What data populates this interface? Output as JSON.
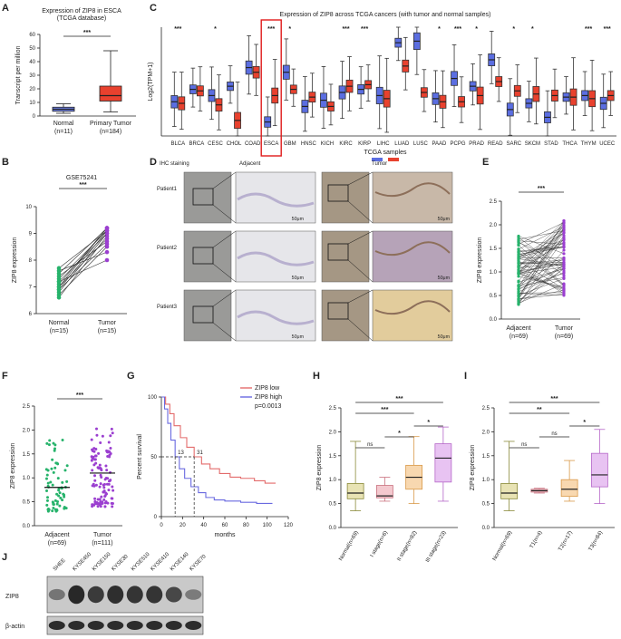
{
  "panels": {
    "A": {
      "label": "A",
      "title": [
        "Expression of ZIP8 in ESCA",
        "(TCGA database)"
      ]
    },
    "B": {
      "label": "B"
    },
    "C": {
      "label": "C"
    },
    "D": {
      "label": "D",
      "col_headers": [
        "IHC staining",
        "Adjacent",
        "Tumor"
      ],
      "row_labels": [
        "Patient1",
        "Patient2",
        "Patient3"
      ],
      "scale_bar": "50μm"
    },
    "E": {
      "label": "E"
    },
    "F": {
      "label": "F"
    },
    "G": {
      "label": "G"
    },
    "H": {
      "label": "H"
    },
    "I": {
      "label": "I"
    },
    "J": {
      "label": "J",
      "cell_lines": [
        "SHEE",
        "KYSE450",
        "KYSE150",
        "KYSE30",
        "KYSE510",
        "KYSE410",
        "KYSE140",
        "KYSE70"
      ],
      "rows": [
        "ZIP8",
        "β-actin"
      ],
      "zip8_intensity": [
        0.3,
        0.9,
        0.75,
        0.85,
        0.8,
        0.8,
        0.65,
        0.25
      ]
    },
    "colors": {
      "normal": "#5b6ee1",
      "tumor": "#e8412e",
      "adjacent_dot": "#26b36b",
      "tumor_dot": "#9b3fd0",
      "km_low": "#e36b6b",
      "km_high": "#6a6ae0"
    }
  },
  "chart_data": [
    {
      "id": "A",
      "type": "box",
      "title": "Expression of ZIP8 in ESCA (TCGA database)",
      "ylabel": "Transcript per million",
      "ylim": [
        0,
        60
      ],
      "yticks": [
        0,
        10,
        20,
        30,
        40,
        50,
        60
      ],
      "categories": [
        "Normal",
        "Primary Tumor"
      ],
      "ns": [
        "(n=11)",
        "(n=184)"
      ],
      "boxes": [
        {
          "min": 2,
          "q1": 3.5,
          "median": 5,
          "q3": 6.5,
          "max": 9
        },
        {
          "min": 3,
          "q1": 11,
          "median": 15,
          "q3": 22,
          "max": 48
        }
      ],
      "significance": "***"
    },
    {
      "id": "B",
      "type": "paired",
      "title": "GSE75241",
      "ylabel": "ZIP8 expression",
      "ylim": [
        6,
        10
      ],
      "yticks": [
        6,
        7,
        8,
        9,
        10
      ],
      "categories": [
        "Normal",
        "Tumor"
      ],
      "ns": [
        "(n=15)",
        "(n=15)"
      ],
      "pairs": [
        [
          6.6,
          8.9
        ],
        [
          6.8,
          9.0
        ],
        [
          6.9,
          9.1
        ],
        [
          7.0,
          8.8
        ],
        [
          7.1,
          9.2
        ],
        [
          7.2,
          9.0
        ],
        [
          7.3,
          9.1
        ],
        [
          7.4,
          8.7
        ],
        [
          7.5,
          9.2
        ],
        [
          7.6,
          8.3
        ],
        [
          6.7,
          8.5
        ],
        [
          7.0,
          9.2
        ],
        [
          7.2,
          8.0
        ],
        [
          7.7,
          9.1
        ],
        [
          6.9,
          8.6
        ]
      ],
      "significance": "***"
    },
    {
      "id": "C",
      "type": "box",
      "title": "Expression of ZIP8 across TCGA cancers (with tumor and normal samples)",
      "xlabel": "TCGA samples",
      "ylabel": "Log2(TPM+1)",
      "categories": [
        "BLCA",
        "BRCA",
        "CESC",
        "CHOL",
        "COAD",
        "ESCA",
        "GBM",
        "HNSC",
        "KICH",
        "KIRC",
        "KIRP",
        "LIHC",
        "LUAD",
        "LUSC",
        "PAAD",
        "PCPG",
        "PRAD",
        "READ",
        "SARC",
        "SKCM",
        "STAD",
        "THCA",
        "THYM",
        "UCEC"
      ],
      "significance": [
        "***",
        "",
        "*",
        "",
        "",
        "***",
        "*",
        "",
        "",
        "***",
        "***",
        "",
        "",
        "",
        "*",
        "***",
        "*",
        "",
        "*",
        "*",
        "",
        "",
        "***",
        "***"
      ],
      "series": [
        {
          "name": "Normal",
          "medians": [
            2.2,
            3.0,
            2.6,
            3.2,
            4.4,
            0.9,
            4.1,
            1.9,
            2.3,
            2.8,
            3.0,
            2.6,
            6.0,
            6.1,
            2.4,
            3.7,
            3.2,
            4.9,
            1.7,
            2.1,
            1.2,
            2.5,
            2.6,
            2.1
          ]
        },
        {
          "name": "Tumor",
          "medians": [
            2.1,
            2.9,
            2.0,
            1.0,
            4.1,
            2.6,
            3.0,
            2.5,
            1.9,
            3.2,
            3.3,
            2.4,
            4.5,
            2.8,
            2.2,
            2.2,
            2.6,
            3.5,
            2.9,
            2.7,
            2.6,
            2.5,
            2.4,
            2.6
          ]
        }
      ],
      "highlight": "ESCA"
    },
    {
      "id": "E",
      "type": "paired",
      "ylabel": "ZIP8 expression",
      "ylim": [
        0,
        2.5
      ],
      "yticks": [
        0.0,
        0.5,
        1.0,
        1.5,
        2.0,
        2.5
      ],
      "categories": [
        "Adjacent",
        "Tumor"
      ],
      "ns": [
        "(n=69)",
        "(n=69)"
      ],
      "significance": "***",
      "adjacent_range": [
        0.3,
        1.8
      ],
      "tumor_range": [
        0.5,
        2.1
      ]
    },
    {
      "id": "F",
      "type": "scatter",
      "ylabel": "ZIP8 expression",
      "ylim": [
        0,
        2.5
      ],
      "yticks": [
        0.0,
        0.5,
        1.0,
        1.5,
        2.0,
        2.5
      ],
      "categories": [
        "Adjacent",
        "Tumor"
      ],
      "ns": [
        "(n=69)",
        "(n=111)"
      ],
      "significance": "***",
      "adjacent": {
        "mean": 0.8,
        "n": 69,
        "range": [
          0.3,
          1.8
        ]
      },
      "tumor": {
        "mean": 1.1,
        "n": 111,
        "range": [
          0.4,
          2.1
        ]
      }
    },
    {
      "id": "G",
      "type": "line",
      "xlabel": "months",
      "ylabel": "Percent survival",
      "xlim": [
        0,
        120
      ],
      "xticks": [
        0,
        20,
        40,
        60,
        80,
        100,
        120
      ],
      "ylim": [
        0,
        100
      ],
      "yticks": [
        0,
        50,
        100
      ],
      "legend": [
        "ZIP8 low",
        "ZIP8 high"
      ],
      "pvalue": "p=0.0013",
      "median_labels": [
        "13",
        "31"
      ],
      "medians": [
        13,
        31
      ],
      "series": [
        {
          "name": "ZIP8 low",
          "points": [
            [
              0,
              100
            ],
            [
              4,
              94
            ],
            [
              8,
              86
            ],
            [
              12,
              76
            ],
            [
              18,
              66
            ],
            [
              24,
              58
            ],
            [
              31,
              50
            ],
            [
              38,
              44
            ],
            [
              46,
              40
            ],
            [
              55,
              36
            ],
            [
              65,
              33
            ],
            [
              75,
              32
            ],
            [
              88,
              30
            ],
            [
              98,
              28
            ],
            [
              108,
              28
            ]
          ]
        },
        {
          "name": "ZIP8 high",
          "points": [
            [
              0,
              100
            ],
            [
              3,
              90
            ],
            [
              6,
              78
            ],
            [
              9,
              64
            ],
            [
              13,
              50
            ],
            [
              17,
              40
            ],
            [
              22,
              32
            ],
            [
              28,
              25
            ],
            [
              35,
              20
            ],
            [
              42,
              16
            ],
            [
              50,
              14
            ],
            [
              60,
              13
            ],
            [
              75,
              12
            ],
            [
              90,
              11
            ],
            [
              105,
              11
            ]
          ]
        }
      ]
    },
    {
      "id": "H",
      "type": "box",
      "ylabel": "ZIP8 expression",
      "ylim": [
        0,
        2.5
      ],
      "yticks": [
        0.0,
        0.5,
        1.0,
        1.5,
        2.0,
        2.5
      ],
      "categories": [
        "Normal(n=69)",
        "I stage(n=6)",
        "II stage(n=82)",
        "III stage(n=23)"
      ],
      "boxes": [
        {
          "min": 0.35,
          "q1": 0.6,
          "median": 0.72,
          "q3": 0.92,
          "max": 1.8
        },
        {
          "min": 0.55,
          "q1": 0.62,
          "median": 0.66,
          "q3": 0.88,
          "max": 1.05
        },
        {
          "min": 0.5,
          "q1": 0.8,
          "median": 1.05,
          "q3": 1.3,
          "max": 1.9
        },
        {
          "min": 0.55,
          "q1": 0.95,
          "median": 1.45,
          "q3": 1.75,
          "max": 2.1
        }
      ],
      "colors": [
        "#e8e3b4",
        "#f4c9cf",
        "#f8d8b0",
        "#e8c3f2"
      ],
      "comparisons": [
        {
          "a": 0,
          "b": 1,
          "label": "ns"
        },
        {
          "a": 1,
          "b": 2,
          "label": "*"
        },
        {
          "a": 2,
          "b": 3,
          "label": "*"
        },
        {
          "a": 0,
          "b": 2,
          "label": "***"
        },
        {
          "a": 0,
          "b": 3,
          "label": "***"
        }
      ]
    },
    {
      "id": "I",
      "type": "box",
      "ylabel": "ZIP8 expression",
      "ylim": [
        0,
        2.5
      ],
      "yticks": [
        0.0,
        0.5,
        1.0,
        1.5,
        2.0,
        2.5
      ],
      "categories": [
        "Normal(n=69)",
        "T1(n=4)",
        "T2(n=17)",
        "T3(n=84)"
      ],
      "boxes": [
        {
          "min": 0.35,
          "q1": 0.6,
          "median": 0.72,
          "q3": 0.92,
          "max": 1.8
        },
        {
          "min": 0.72,
          "q1": 0.74,
          "median": 0.77,
          "q3": 0.8,
          "max": 0.82
        },
        {
          "min": 0.55,
          "q1": 0.65,
          "median": 0.8,
          "q3": 1.0,
          "max": 1.4
        },
        {
          "min": 0.5,
          "q1": 0.85,
          "median": 1.1,
          "q3": 1.55,
          "max": 2.05
        }
      ],
      "colors": [
        "#e8e3b4",
        "#f4c9cf",
        "#f8d8b0",
        "#e8c3f2"
      ],
      "comparisons": [
        {
          "a": 0,
          "b": 1,
          "label": "ns"
        },
        {
          "a": 1,
          "b": 2,
          "label": "ns"
        },
        {
          "a": 2,
          "b": 3,
          "label": "*"
        },
        {
          "a": 0,
          "b": 2,
          "label": "**"
        },
        {
          "a": 0,
          "b": 3,
          "label": "***"
        }
      ]
    }
  ]
}
